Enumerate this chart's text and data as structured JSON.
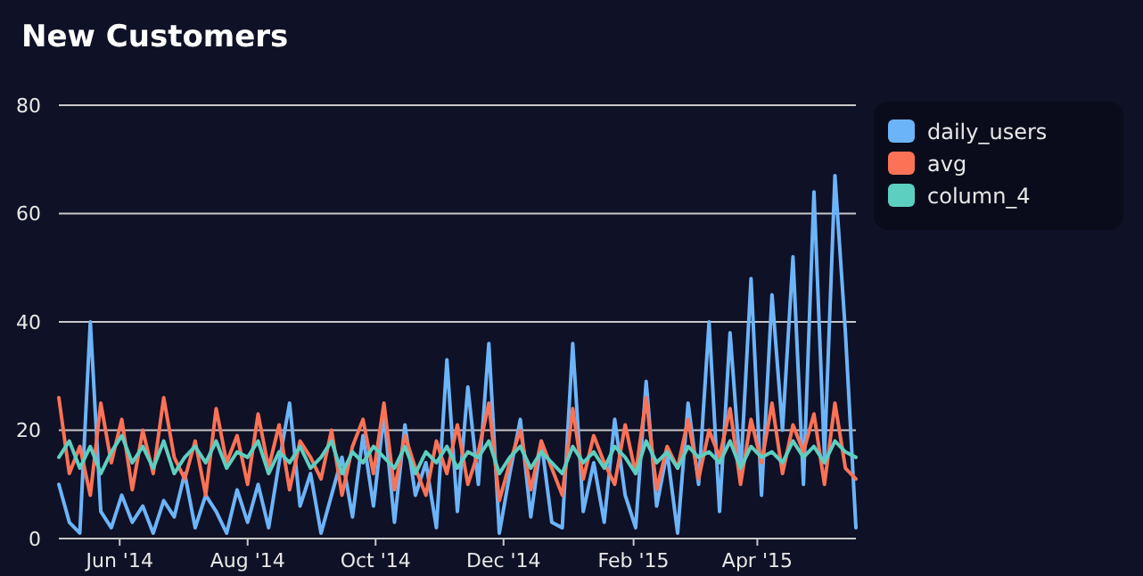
{
  "chart_data": {
    "type": "line",
    "title": "New Customers",
    "x": [
      "2014-05-03",
      "2014-05-08",
      "2014-05-13",
      "2014-05-18",
      "2014-05-23",
      "2014-05-28",
      "2014-06-02",
      "2014-06-07",
      "2014-06-12",
      "2014-06-17",
      "2014-06-22",
      "2014-06-27",
      "2014-07-02",
      "2014-07-07",
      "2014-07-12",
      "2014-07-17",
      "2014-07-22",
      "2014-07-27",
      "2014-08-01",
      "2014-08-06",
      "2014-08-11",
      "2014-08-16",
      "2014-08-21",
      "2014-08-26",
      "2014-08-31",
      "2014-09-05",
      "2014-09-10",
      "2014-09-15",
      "2014-09-20",
      "2014-09-25",
      "2014-09-30",
      "2014-10-05",
      "2014-10-10",
      "2014-10-15",
      "2014-10-20",
      "2014-10-25",
      "2014-10-30",
      "2014-11-04",
      "2014-11-09",
      "2014-11-14",
      "2014-11-19",
      "2014-11-24",
      "2014-11-29",
      "2014-12-04",
      "2014-12-09",
      "2014-12-14",
      "2014-12-19",
      "2014-12-24",
      "2014-12-29",
      "2015-01-03",
      "2015-01-08",
      "2015-01-13",
      "2015-01-18",
      "2015-01-23",
      "2015-01-28",
      "2015-02-02",
      "2015-02-07",
      "2015-02-12",
      "2015-02-17",
      "2015-02-22",
      "2015-02-27",
      "2015-03-04",
      "2015-03-09",
      "2015-03-14",
      "2015-03-19",
      "2015-03-24",
      "2015-03-29",
      "2015-04-03",
      "2015-04-08",
      "2015-04-13",
      "2015-04-18",
      "2015-04-23",
      "2015-04-28",
      "2015-05-03",
      "2015-05-08",
      "2015-05-13",
      "2015-05-18"
    ],
    "series": [
      {
        "name": "daily_users",
        "color": "#6cb4f8",
        "values": [
          10,
          3,
          1,
          40,
          5,
          2,
          8,
          3,
          6,
          1,
          7,
          4,
          12,
          2,
          8,
          5,
          1,
          9,
          3,
          10,
          2,
          14,
          25,
          6,
          12,
          1,
          8,
          15,
          4,
          19,
          6,
          23,
          3,
          21,
          8,
          14,
          2,
          33,
          5,
          28,
          10,
          36,
          1,
          12,
          22,
          4,
          18,
          3,
          2,
          36,
          5,
          14,
          3,
          22,
          8,
          2,
          29,
          6,
          16,
          1,
          25,
          10,
          40,
          5,
          38,
          12,
          48,
          8,
          45,
          20,
          52,
          10,
          64,
          15,
          67,
          38,
          2
        ]
      },
      {
        "name": "avg",
        "color": "#fb7256",
        "values": [
          26,
          12,
          17,
          8,
          25,
          14,
          22,
          9,
          20,
          12,
          26,
          15,
          11,
          18,
          8,
          24,
          14,
          19,
          10,
          23,
          13,
          21,
          9,
          18,
          15,
          11,
          20,
          8,
          17,
          22,
          12,
          25,
          9,
          19,
          13,
          8,
          18,
          12,
          21,
          10,
          16,
          25,
          7,
          14,
          20,
          9,
          18,
          13,
          8,
          24,
          11,
          19,
          14,
          10,
          21,
          12,
          26,
          9,
          17,
          13,
          22,
          11,
          20,
          15,
          24,
          10,
          22,
          14,
          25,
          12,
          21,
          16,
          23,
          10,
          25,
          13,
          11
        ]
      },
      {
        "name": "column_4",
        "color": "#5ccfc0",
        "values": [
          15,
          18,
          13,
          17,
          12,
          16,
          19,
          14,
          17,
          13,
          18,
          12,
          15,
          17,
          14,
          18,
          13,
          16,
          15,
          18,
          12,
          16,
          14,
          17,
          13,
          15,
          18,
          12,
          16,
          14,
          17,
          15,
          13,
          17,
          12,
          16,
          14,
          17,
          13,
          16,
          15,
          18,
          12,
          15,
          17,
          13,
          16,
          14,
          12,
          17,
          14,
          16,
          13,
          17,
          15,
          12,
          18,
          14,
          16,
          13,
          17,
          15,
          16,
          14,
          18,
          13,
          17,
          15,
          16,
          14,
          18,
          15,
          17,
          14,
          18,
          16,
          15
        ]
      }
    ],
    "xlim": [
      "2014-05-03",
      "2015-05-18"
    ],
    "xticks": [
      {
        "value": "2014-06-01",
        "label": "Jun '14"
      },
      {
        "value": "2014-08-01",
        "label": "Aug '14"
      },
      {
        "value": "2014-10-01",
        "label": "Oct '14"
      },
      {
        "value": "2014-12-01",
        "label": "Dec '14"
      },
      {
        "value": "2015-02-01",
        "label": "Feb '15"
      },
      {
        "value": "2015-04-01",
        "label": "Apr '15"
      }
    ],
    "ylim": [
      0,
      80
    ],
    "yticks": [
      0,
      20,
      40,
      60,
      80
    ],
    "grid": "y",
    "legend": "top right",
    "line_style": "solid",
    "marker": "none"
  }
}
